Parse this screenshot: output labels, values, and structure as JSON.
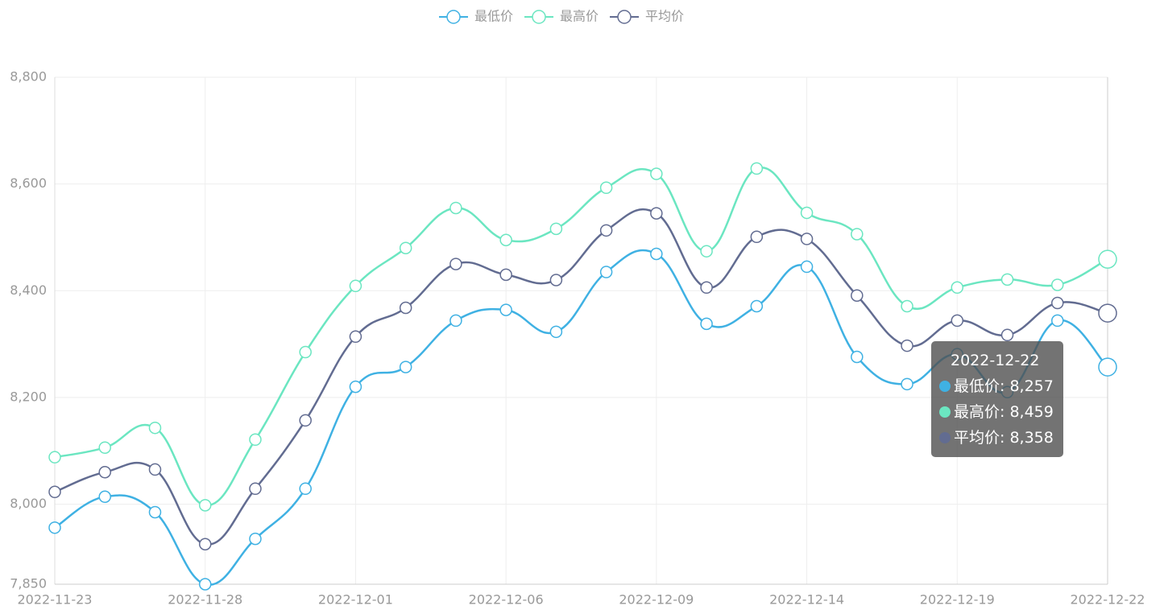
{
  "chart_data": {
    "type": "line",
    "categories": [
      "2022-11-23",
      null,
      null,
      "2022-11-28",
      null,
      null,
      "2022-12-01",
      null,
      null,
      "2022-12-06",
      null,
      null,
      "2022-12-09",
      null,
      null,
      "2022-12-14",
      null,
      null,
      "2022-12-19",
      null,
      null,
      "2022-12-22"
    ],
    "series": [
      {
        "name": "最低价",
        "color": "#3fb1e3",
        "values": [
          7956,
          8014,
          7985,
          7850,
          7935,
          8029,
          8220,
          8257,
          8344,
          8364,
          8323,
          8435,
          8469,
          8338,
          8371,
          8445,
          8276,
          8225,
          8281,
          8210,
          8344,
          8257
        ]
      },
      {
        "name": "最高价",
        "color": "#6be6c1",
        "values": [
          8088,
          8106,
          8143,
          7998,
          8121,
          8285,
          8409,
          8480,
          8555,
          8495,
          8516,
          8593,
          8619,
          8474,
          8629,
          8546,
          8506,
          8371,
          8406,
          8421,
          8411,
          8459
        ]
      },
      {
        "name": "平均价",
        "color": "#626c91",
        "values": [
          8023,
          8060,
          8065,
          7925,
          8029,
          8157,
          8314,
          8368,
          8450,
          8430,
          8420,
          8513,
          8545,
          8406,
          8501,
          8497,
          8391,
          8297,
          8344,
          8317,
          8377,
          8358
        ]
      }
    ],
    "ylim": [
      7850,
      8800
    ],
    "yticks": [
      {
        "value": 7850,
        "label": "7,850"
      },
      {
        "value": 8000,
        "label": "8,000"
      },
      {
        "value": 8200,
        "label": "8,200"
      },
      {
        "value": 8400,
        "label": "8,400"
      },
      {
        "value": 8600,
        "label": "8,600"
      },
      {
        "value": 8800,
        "label": "8,800"
      }
    ],
    "grid": true,
    "legend": "top",
    "tooltip": {
      "title": "2022-12-22",
      "items": [
        "最低价: 8,257",
        "最高价: 8,459",
        "平均价: 8,358"
      ]
    }
  }
}
